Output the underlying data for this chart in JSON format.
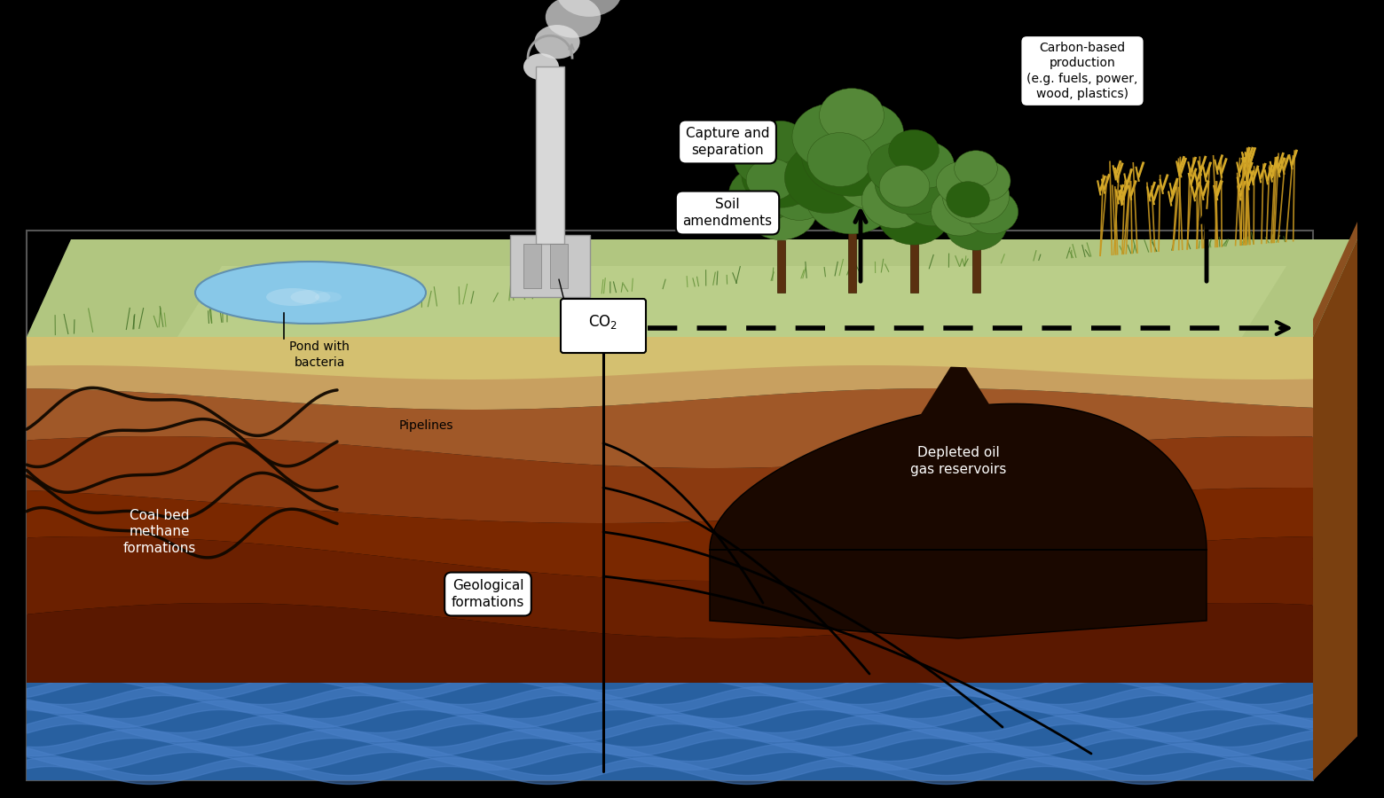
{
  "bg": "#000000",
  "colors": {
    "ground_green": "#b8cc88",
    "ground_green_dark": "#8aaa58",
    "ground_green_light": "#c8dc98",
    "soil_tan": "#d4c070",
    "layer1": "#c8a060",
    "layer2": "#a05828",
    "layer3": "#8b3a10",
    "layer4": "#7a2800",
    "layer5": "#6b2000",
    "layer6": "#5a1800",
    "water_blue": "#2860a0",
    "water_light": "#4a80c8",
    "right_face_brown": "#8b5020",
    "right_face_brown2": "#7a4010",
    "pond_blue": "#88c8e8",
    "pond_dark": "#6090b0",
    "smoke_gray": "#d8d8d8",
    "chimney_gray": "#d0d0d0",
    "building_gray": "#b8b8b8",
    "geo_black": "#1a0800",
    "coal_black": "#100800"
  },
  "labels": {
    "pond": "Pond with\nbacteria",
    "capture": "Capture and\nseparation",
    "soil": "Soil\namendments",
    "co2": "CO₂",
    "carbon_prod": "Carbon-based\nproduction\n(e.g. fuels, power,\nwood, plastics)",
    "pipelines": "Pipelines",
    "coal_bed": "Coal bed\nmethane\nformations",
    "geological": "Geological\nformations",
    "depleted": "Depleted oil\ngas reservoirs"
  }
}
